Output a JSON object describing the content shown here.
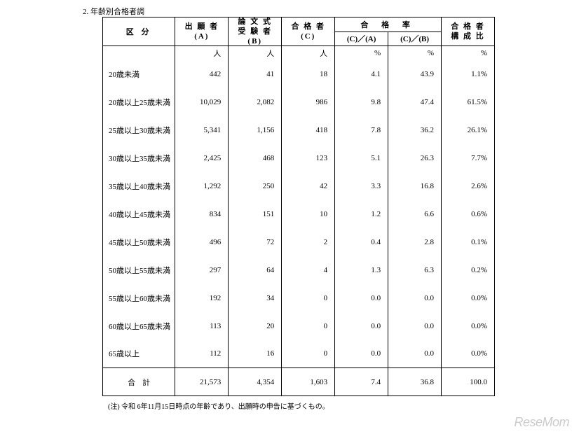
{
  "title": "2. 年齢別合格者調",
  "headers": {
    "category": "区 分",
    "colA_top": "出 願 者",
    "colA_sub": "(A)",
    "colB_top": "論 文 式",
    "colB_top2": "受 験 者",
    "colB_sub": "(B)",
    "colC_top": "合 格 者",
    "colC_sub": "(C)",
    "pass_rate": "合 格 率",
    "colCA": "(C)／(A)",
    "colCB": "(C)／(B)",
    "ratio_top": "合 格 者",
    "ratio_top2": "構 成 比"
  },
  "units": {
    "person": "人",
    "percent": "%"
  },
  "rows": [
    {
      "cat": "20歳未満",
      "a": "442",
      "b": "41",
      "c": "18",
      "ca": "4.1",
      "cb": "43.9",
      "r": "1.1%"
    },
    {
      "cat": "20歳以上25歳未満",
      "a": "10,029",
      "b": "2,082",
      "c": "986",
      "ca": "9.8",
      "cb": "47.4",
      "r": "61.5%"
    },
    {
      "cat": "25歳以上30歳未満",
      "a": "5,341",
      "b": "1,156",
      "c": "418",
      "ca": "7.8",
      "cb": "36.2",
      "r": "26.1%"
    },
    {
      "cat": "30歳以上35歳未満",
      "a": "2,425",
      "b": "468",
      "c": "123",
      "ca": "5.1",
      "cb": "26.3",
      "r": "7.7%"
    },
    {
      "cat": "35歳以上40歳未満",
      "a": "1,292",
      "b": "250",
      "c": "42",
      "ca": "3.3",
      "cb": "16.8",
      "r": "2.6%"
    },
    {
      "cat": "40歳以上45歳未満",
      "a": "834",
      "b": "151",
      "c": "10",
      "ca": "1.2",
      "cb": "6.6",
      "r": "0.6%"
    },
    {
      "cat": "45歳以上50歳未満",
      "a": "496",
      "b": "72",
      "c": "2",
      "ca": "0.4",
      "cb": "2.8",
      "r": "0.1%"
    },
    {
      "cat": "50歳以上55歳未満",
      "a": "297",
      "b": "64",
      "c": "4",
      "ca": "1.3",
      "cb": "6.3",
      "r": "0.2%"
    },
    {
      "cat": "55歳以上60歳未満",
      "a": "192",
      "b": "34",
      "c": "0",
      "ca": "0.0",
      "cb": "0.0",
      "r": "0.0%"
    },
    {
      "cat": "60歳以上65歳未満",
      "a": "113",
      "b": "20",
      "c": "0",
      "ca": "0.0",
      "cb": "0.0",
      "r": "0.0%"
    },
    {
      "cat": "65歳以上",
      "a": "112",
      "b": "16",
      "c": "0",
      "ca": "0.0",
      "cb": "0.0",
      "r": "0.0%"
    }
  ],
  "total": {
    "label": "合計",
    "a": "21,573",
    "b": "4,354",
    "c": "1,603",
    "ca": "7.4",
    "cb": "36.8",
    "r": "100.0"
  },
  "note": "(注)  令和 6年11月15日時点の年齡であり、出願時の申告に基づくもの。",
  "logo": "ReseMom"
}
